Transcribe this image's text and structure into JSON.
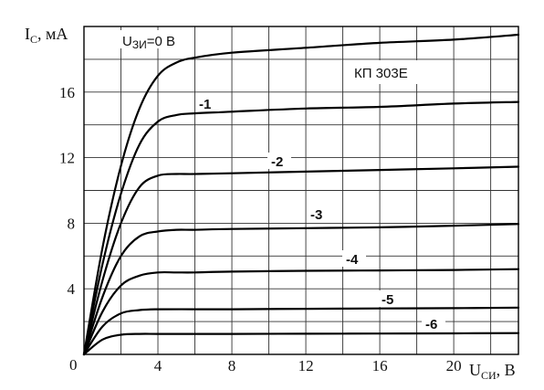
{
  "chart_data": {
    "type": "line",
    "ylabel_main": "I",
    "ylabel_sub": "С",
    "ylabel_unit": ", мА",
    "xlabel_main": "U",
    "xlabel_sub": "СИ",
    "xlabel_unit": ", В",
    "origin_label": "0",
    "xlim": [
      0,
      23.5
    ],
    "ylim": [
      0,
      20
    ],
    "x_ticks": [
      "4",
      "8",
      "12",
      "16",
      "20"
    ],
    "x_tick_values": [
      4,
      8,
      12,
      16,
      20
    ],
    "y_ticks": [
      "4",
      "8",
      "12",
      "16"
    ],
    "y_tick_values": [
      4,
      8,
      12,
      16
    ],
    "grid_x_step": 2,
    "grid_y_step": 2,
    "grid": true,
    "annotation": "КП 303Е",
    "series": [
      {
        "name": "=0 В",
        "label_main": "U",
        "label_sub": "ЗИ",
        "label_rest": "=0 В",
        "x": [
          0,
          1,
          2,
          3,
          4,
          5,
          6,
          8,
          12,
          16,
          20,
          23.5
        ],
        "y": [
          0,
          6.5,
          11.5,
          15.0,
          17.0,
          17.8,
          18.1,
          18.4,
          18.7,
          19.0,
          19.2,
          19.5
        ]
      },
      {
        "name": "-1",
        "x": [
          0,
          1,
          2,
          3,
          4,
          5,
          6,
          8,
          12,
          16,
          20,
          23.5
        ],
        "y": [
          0,
          5.5,
          9.8,
          12.8,
          14.2,
          14.6,
          14.7,
          14.8,
          15.0,
          15.1,
          15.3,
          15.4
        ]
      },
      {
        "name": "-2",
        "x": [
          0,
          1,
          2,
          3,
          4,
          5,
          6,
          8,
          12,
          16,
          20,
          23.5
        ],
        "y": [
          0,
          4.5,
          8.0,
          10.2,
          10.9,
          11.0,
          11.0,
          11.05,
          11.15,
          11.25,
          11.35,
          11.45
        ]
      },
      {
        "name": "-3",
        "x": [
          0,
          1,
          2,
          3,
          4,
          5,
          6,
          8,
          12,
          16,
          20,
          23.5
        ],
        "y": [
          0,
          3.5,
          6.0,
          7.2,
          7.5,
          7.6,
          7.6,
          7.65,
          7.7,
          7.75,
          7.85,
          7.95
        ]
      },
      {
        "name": "-4",
        "x": [
          0,
          1,
          2,
          3,
          4,
          5,
          6,
          8,
          12,
          16,
          20,
          23.5
        ],
        "y": [
          0,
          2.6,
          4.2,
          4.8,
          5.0,
          5.0,
          5.0,
          5.05,
          5.1,
          5.12,
          5.15,
          5.2
        ]
      },
      {
        "name": "-5",
        "x": [
          0,
          1,
          2,
          3,
          4,
          6,
          8,
          12,
          16,
          20,
          23.5
        ],
        "y": [
          0,
          1.7,
          2.5,
          2.7,
          2.75,
          2.75,
          2.75,
          2.78,
          2.8,
          2.82,
          2.85
        ]
      },
      {
        "name": "-6",
        "x": [
          0,
          1,
          2,
          3,
          4,
          6,
          8,
          12,
          16,
          20,
          23.5
        ],
        "y": [
          0,
          0.9,
          1.2,
          1.25,
          1.25,
          1.25,
          1.25,
          1.26,
          1.27,
          1.28,
          1.3
        ]
      }
    ]
  }
}
